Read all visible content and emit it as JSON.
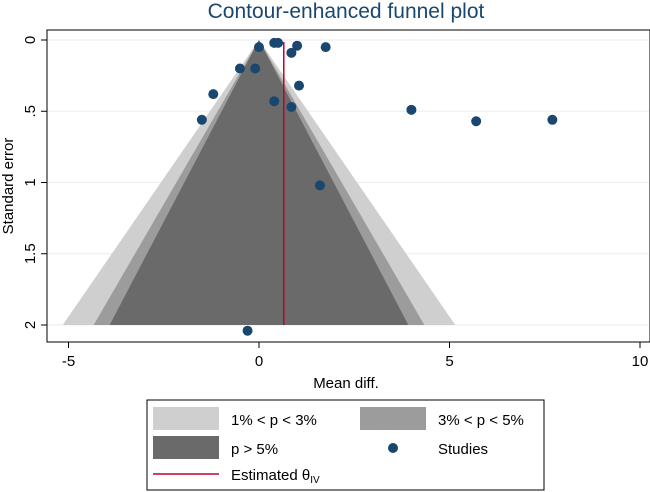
{
  "chart_data": {
    "type": "scatter",
    "title": "Contour-enhanced funnel plot",
    "xlabel": "Mean diff.",
    "ylabel": "Standard error",
    "xlim": [
      -5,
      10
    ],
    "ylim": [
      2.0,
      0
    ],
    "x_ticks": [
      "-5",
      "0",
      "5",
      "10"
    ],
    "x_tick_values": [
      -5,
      0,
      5,
      10
    ],
    "y_ticks": [
      "0",
      ".5",
      "1",
      "1.5",
      "2"
    ],
    "y_tick_values": [
      0,
      0.5,
      1,
      1.5,
      2
    ],
    "grid": true,
    "estimate": 0.65,
    "contours": {
      "p_gt_5": 1.96,
      "p_3_5": 2.17,
      "p_1_3": 2.576
    },
    "studies": [
      {
        "x": 0.4,
        "y": 0.02
      },
      {
        "x": 0.5,
        "y": 0.02
      },
      {
        "x": 0.0,
        "y": 0.05
      },
      {
        "x": 1.0,
        "y": 0.04
      },
      {
        "x": 1.75,
        "y": 0.05
      },
      {
        "x": 0.85,
        "y": 0.09
      },
      {
        "x": -0.5,
        "y": 0.2
      },
      {
        "x": -0.1,
        "y": 0.2
      },
      {
        "x": 1.05,
        "y": 0.32
      },
      {
        "x": -1.2,
        "y": 0.38
      },
      {
        "x": 0.4,
        "y": 0.43
      },
      {
        "x": 0.85,
        "y": 0.47
      },
      {
        "x": 4.0,
        "y": 0.49
      },
      {
        "x": -1.5,
        "y": 0.56
      },
      {
        "x": 5.7,
        "y": 0.57
      },
      {
        "x": 7.7,
        "y": 0.56
      },
      {
        "x": 1.6,
        "y": 1.02
      },
      {
        "x": -0.3,
        "y": 2.04
      }
    ],
    "colors": {
      "band_1_3": "#cfcfcf",
      "band_3_5": "#9c9c9c",
      "band_gt_5": "#6a6a6a",
      "studies": "#1a476f",
      "estimate": "#c00030",
      "title": "#1a476f"
    }
  },
  "legend": {
    "items": [
      {
        "key": "band_1_3",
        "label": "1% < p < 3%"
      },
      {
        "key": "band_3_5",
        "label": "3% < p < 5%"
      },
      {
        "key": "band_gt_5",
        "label": "p > 5%"
      },
      {
        "key": "studies",
        "label": "Studies"
      },
      {
        "key": "estimate",
        "label": "Estimated θ",
        "sub": "IV"
      }
    ]
  }
}
